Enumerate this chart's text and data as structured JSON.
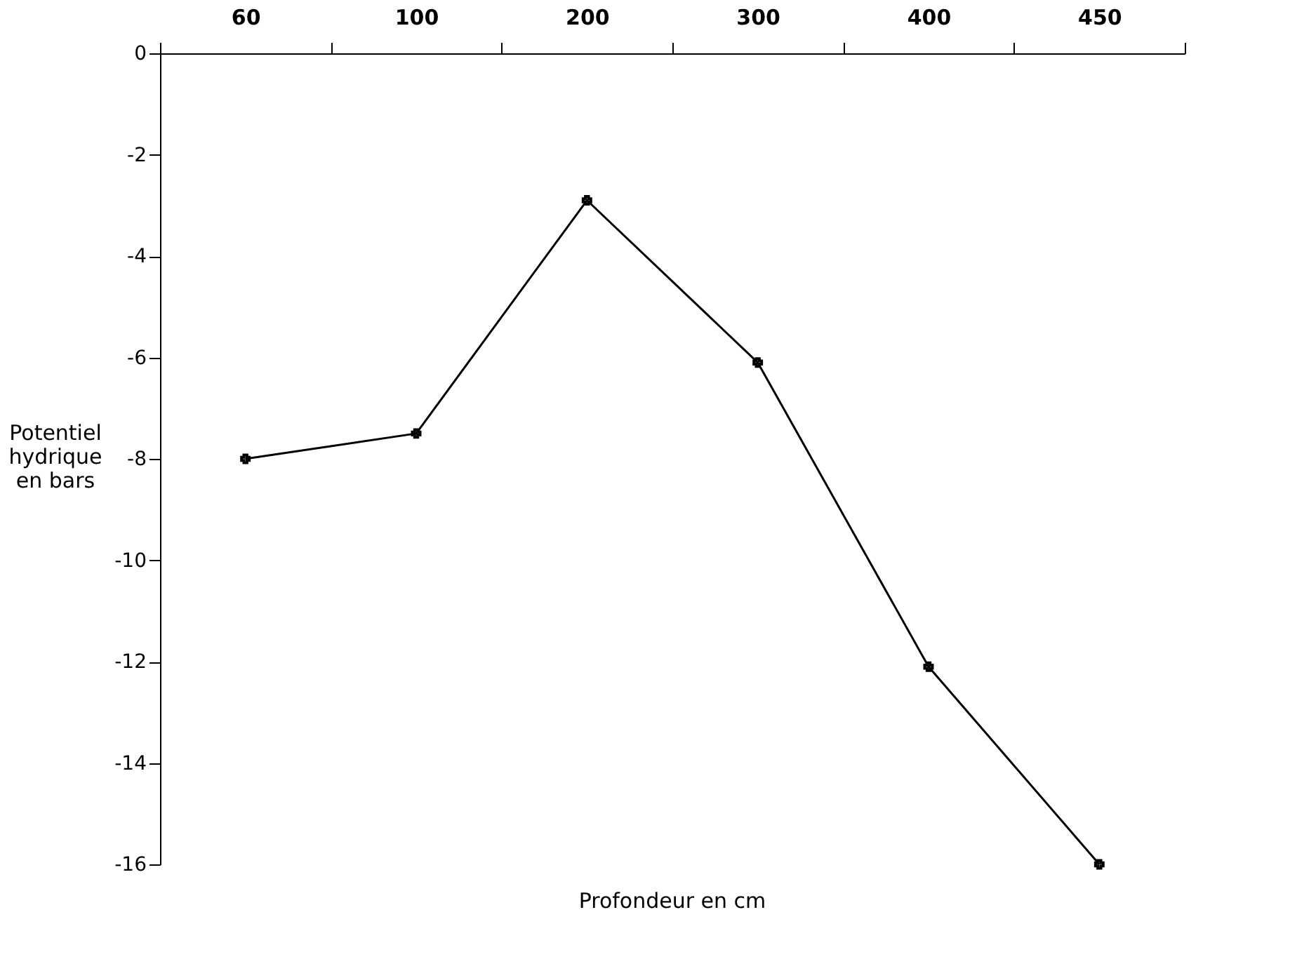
{
  "chart_data": {
    "type": "line",
    "categories": [
      "60",
      "100",
      "200",
      "300",
      "400",
      "450"
    ],
    "values": [
      -8.0,
      -7.5,
      -2.9,
      -6.1,
      -12.1,
      -16.0
    ],
    "color": "#000000",
    "xlabel": "Profondeur en cm",
    "ylabel": "Potentiel\nhydrique\nen bars",
    "ylim": [
      -16,
      0
    ],
    "yticks": [
      0,
      -2,
      -4,
      -6,
      -8,
      -10,
      -12,
      -14,
      -16
    ],
    "marker": "cross",
    "grid": false
  }
}
